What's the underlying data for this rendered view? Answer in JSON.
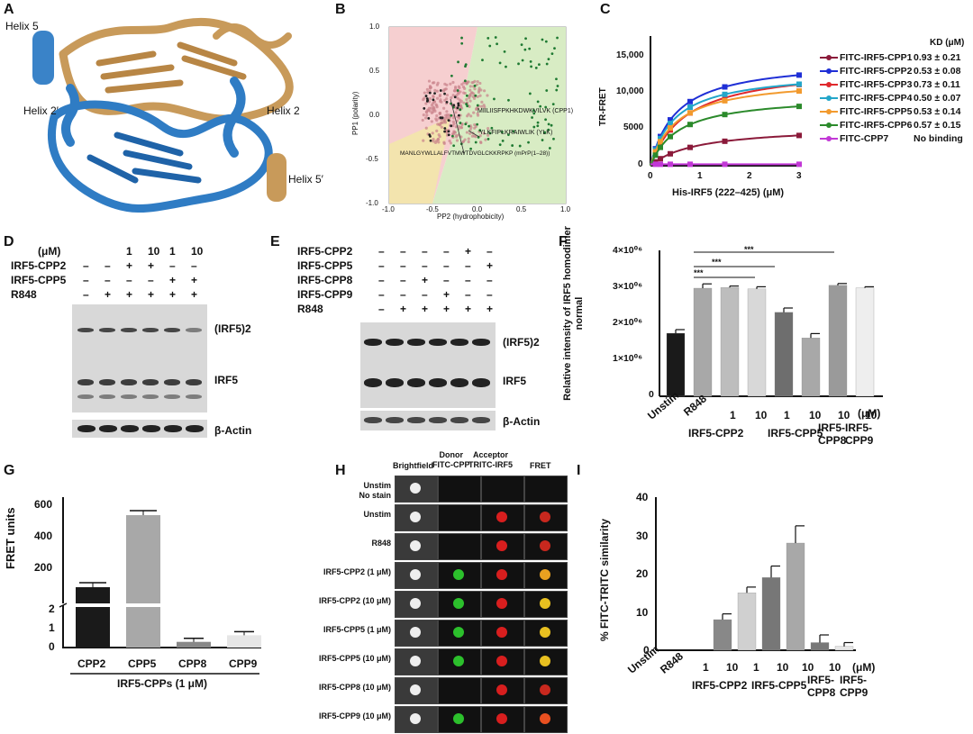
{
  "labels": {
    "A": "A",
    "B": "B",
    "C": "C",
    "D": "D",
    "E": "E",
    "F": "F",
    "G": "G",
    "H": "H",
    "I": "I"
  },
  "panelA": {
    "helix5": "Helix 5",
    "helix2p": "Helix 2′",
    "helix2": "Helix 2",
    "helix5p": "Helix 5′"
  },
  "panelB": {
    "ylabel": "PP1 (polarity)",
    "xlabel": "PP2 (hydrophobicity)",
    "yticks": [
      "1.0",
      "0.5",
      "0.0",
      "-0.5",
      "-1.0"
    ],
    "xticks": [
      "-1.0",
      "-0.5",
      "0.0",
      "0.5",
      "1.0"
    ],
    "seq1": "MIILIISFPKHKDWKVILVK (CPP1)",
    "seq2": "YLKFIPLKRAIWLIK (YLK)",
    "seq3": "MANLGYWLLALFVTMWTDVGLCKKRPKP (mPrP(1–28))"
  },
  "panelC": {
    "ylabel": "TR-FRET",
    "xlabel": "His-IRF5 (222–425) (μM)",
    "yticks": [
      "15,000",
      "10,000",
      "5000",
      "0"
    ],
    "xticks": [
      "0",
      "1",
      "2",
      "3"
    ],
    "kd_header": "KD (μM)",
    "legend": [
      {
        "name": "FITC-IRF5-CPP1",
        "kd": "0.93 ± 0.21",
        "color": "#8b1a3a"
      },
      {
        "name": "FITC-IRF5-CPP2",
        "kd": "0.53 ± 0.08",
        "color": "#1f2fd6"
      },
      {
        "name": "FITC-IRF5-CPP3",
        "kd": "0.73 ± 0.11",
        "color": "#e0282c"
      },
      {
        "name": "FITC-IRF5-CPP4",
        "kd": "0.50 ± 0.07",
        "color": "#23a6c9"
      },
      {
        "name": "FITC-IRF5-CPP5",
        "kd": "0.53 ± 0.14",
        "color": "#f29a2e"
      },
      {
        "name": "FITC-IRF5-CPP6",
        "kd": "0.57 ± 0.15",
        "color": "#2b8a2b"
      },
      {
        "name": "FITC-CPP7",
        "kd": "No binding",
        "color": "#c238d6"
      }
    ]
  },
  "panelD": {
    "rows": [
      {
        "label": "(μM)",
        "vals": [
          "",
          "",
          "1",
          "10",
          "1",
          "10"
        ]
      },
      {
        "label": "IRF5-CPP2",
        "vals": [
          "–",
          "–",
          "+",
          "+",
          "–",
          "–"
        ]
      },
      {
        "label": "IRF5-CPP5",
        "vals": [
          "–",
          "–",
          "–",
          "–",
          "+",
          "+"
        ]
      },
      {
        "label": "R848",
        "vals": [
          "–",
          "+",
          "+",
          "+",
          "+",
          "+"
        ]
      }
    ],
    "band1": "(IRF5)2",
    "band2": "IRF5",
    "band3": "β-Actin"
  },
  "panelE": {
    "rows": [
      {
        "label": "IRF5-CPP2",
        "vals": [
          "–",
          "–",
          "–",
          "–",
          "+",
          "–"
        ]
      },
      {
        "label": "IRF5-CPP5",
        "vals": [
          "–",
          "–",
          "–",
          "–",
          "–",
          "+"
        ]
      },
      {
        "label": "IRF5-CPP8",
        "vals": [
          "–",
          "–",
          "+",
          "–",
          "–",
          "–"
        ]
      },
      {
        "label": "IRF5-CPP9",
        "vals": [
          "–",
          "–",
          "–",
          "+",
          "–",
          "–"
        ]
      },
      {
        "label": "R848",
        "vals": [
          "–",
          "+",
          "+",
          "+",
          "+",
          "+"
        ]
      }
    ],
    "band1": "(IRF5)2",
    "band2": "IRF5",
    "band3": "β-Actin"
  },
  "chart_data": [
    {
      "type": "bar",
      "panel": "F",
      "ylabel": "Relative intensity of IRF5 homodimer normal",
      "yticks": [
        "4×10⁰⁶",
        "3×10⁰⁶",
        "2×10⁰⁶",
        "1×10⁰⁶",
        "0"
      ],
      "ylim": [
        0,
        4000000
      ],
      "categories": [
        "Unstim",
        "R848",
        "1",
        "10",
        "1",
        "10",
        "10",
        "10"
      ],
      "values": [
        1750000,
        3000000,
        3020000,
        2980000,
        2330000,
        1620000,
        3080000,
        3010000
      ],
      "errors": [
        100000,
        120000,
        40000,
        60000,
        120000,
        120000,
        50000,
        30000
      ],
      "colors": [
        "#1a1a1a",
        "#a8a8a8",
        "#bdbdbd",
        "#d8d8d8",
        "#6e6e6e",
        "#a8a8a8",
        "#9a9a9a",
        "#eeeeee"
      ],
      "group_labels": [
        "IRF5-CPP2",
        "IRF5-CPP5",
        "IRF5-\nCPP8",
        "IRF5-\nCPP9"
      ],
      "unit": "(μM)",
      "sig": [
        "***",
        "***",
        "***"
      ]
    },
    {
      "type": "bar",
      "panel": "G",
      "ylabel": "FRET units",
      "xlabel": "IRF5-CPPs (1 μM)",
      "categories": [
        "CPP2",
        "CPP5",
        "CPP8",
        "CPP9"
      ],
      "values": [
        90,
        490,
        0.3,
        0.65
      ],
      "errors": [
        8,
        20,
        0.15,
        0.12
      ],
      "colors": [
        "#1a1a1a",
        "#a8a8a8",
        "#888888",
        "#e6e6e6"
      ],
      "yticks_top": [
        "600",
        "400",
        "200"
      ],
      "yticks_bottom": [
        "2",
        "1",
        "0"
      ]
    },
    {
      "type": "bar",
      "panel": "I",
      "ylabel": "% FITC-TRITC similarity",
      "yticks": [
        "40",
        "30",
        "20",
        "10",
        "0"
      ],
      "ylim": [
        0,
        40
      ],
      "categories": [
        "Unstim",
        "R848",
        "1",
        "10",
        "1",
        "10",
        "10",
        "10"
      ],
      "values": [
        0,
        0,
        8,
        15,
        19,
        28,
        2,
        1
      ],
      "errors": [
        0,
        0,
        1.5,
        1.5,
        3,
        4.5,
        2,
        1
      ],
      "colors": [
        "#1a1a1a",
        "#a8a8a8",
        "#888888",
        "#d0d0d0",
        "#777777",
        "#a8a8a8",
        "#777777",
        "#e6e6e6"
      ],
      "group_labels": [
        "IRF5-CPP2",
        "IRF5-CPP5",
        "IRF5-\nCPP8",
        "IRF5-\nCPP9"
      ],
      "unit": "(μM)"
    }
  ],
  "panelH": {
    "cols": [
      "Brightfield",
      "Donor\nFITC-CPP",
      "Acceptor\nTRITC-IRF5",
      "FRET"
    ],
    "rows": [
      "Unstim\nNo stain",
      "Unstim",
      "R848",
      "IRF5-CPP2 (1 μM)",
      "IRF5-CPP2 (10 μM)",
      "IRF5-CPP5 (1 μM)",
      "IRF5-CPP5 (10 μM)",
      "IRF5-CPP8 (10 μM)",
      "IRF5-CPP9 (10 μM)"
    ]
  }
}
